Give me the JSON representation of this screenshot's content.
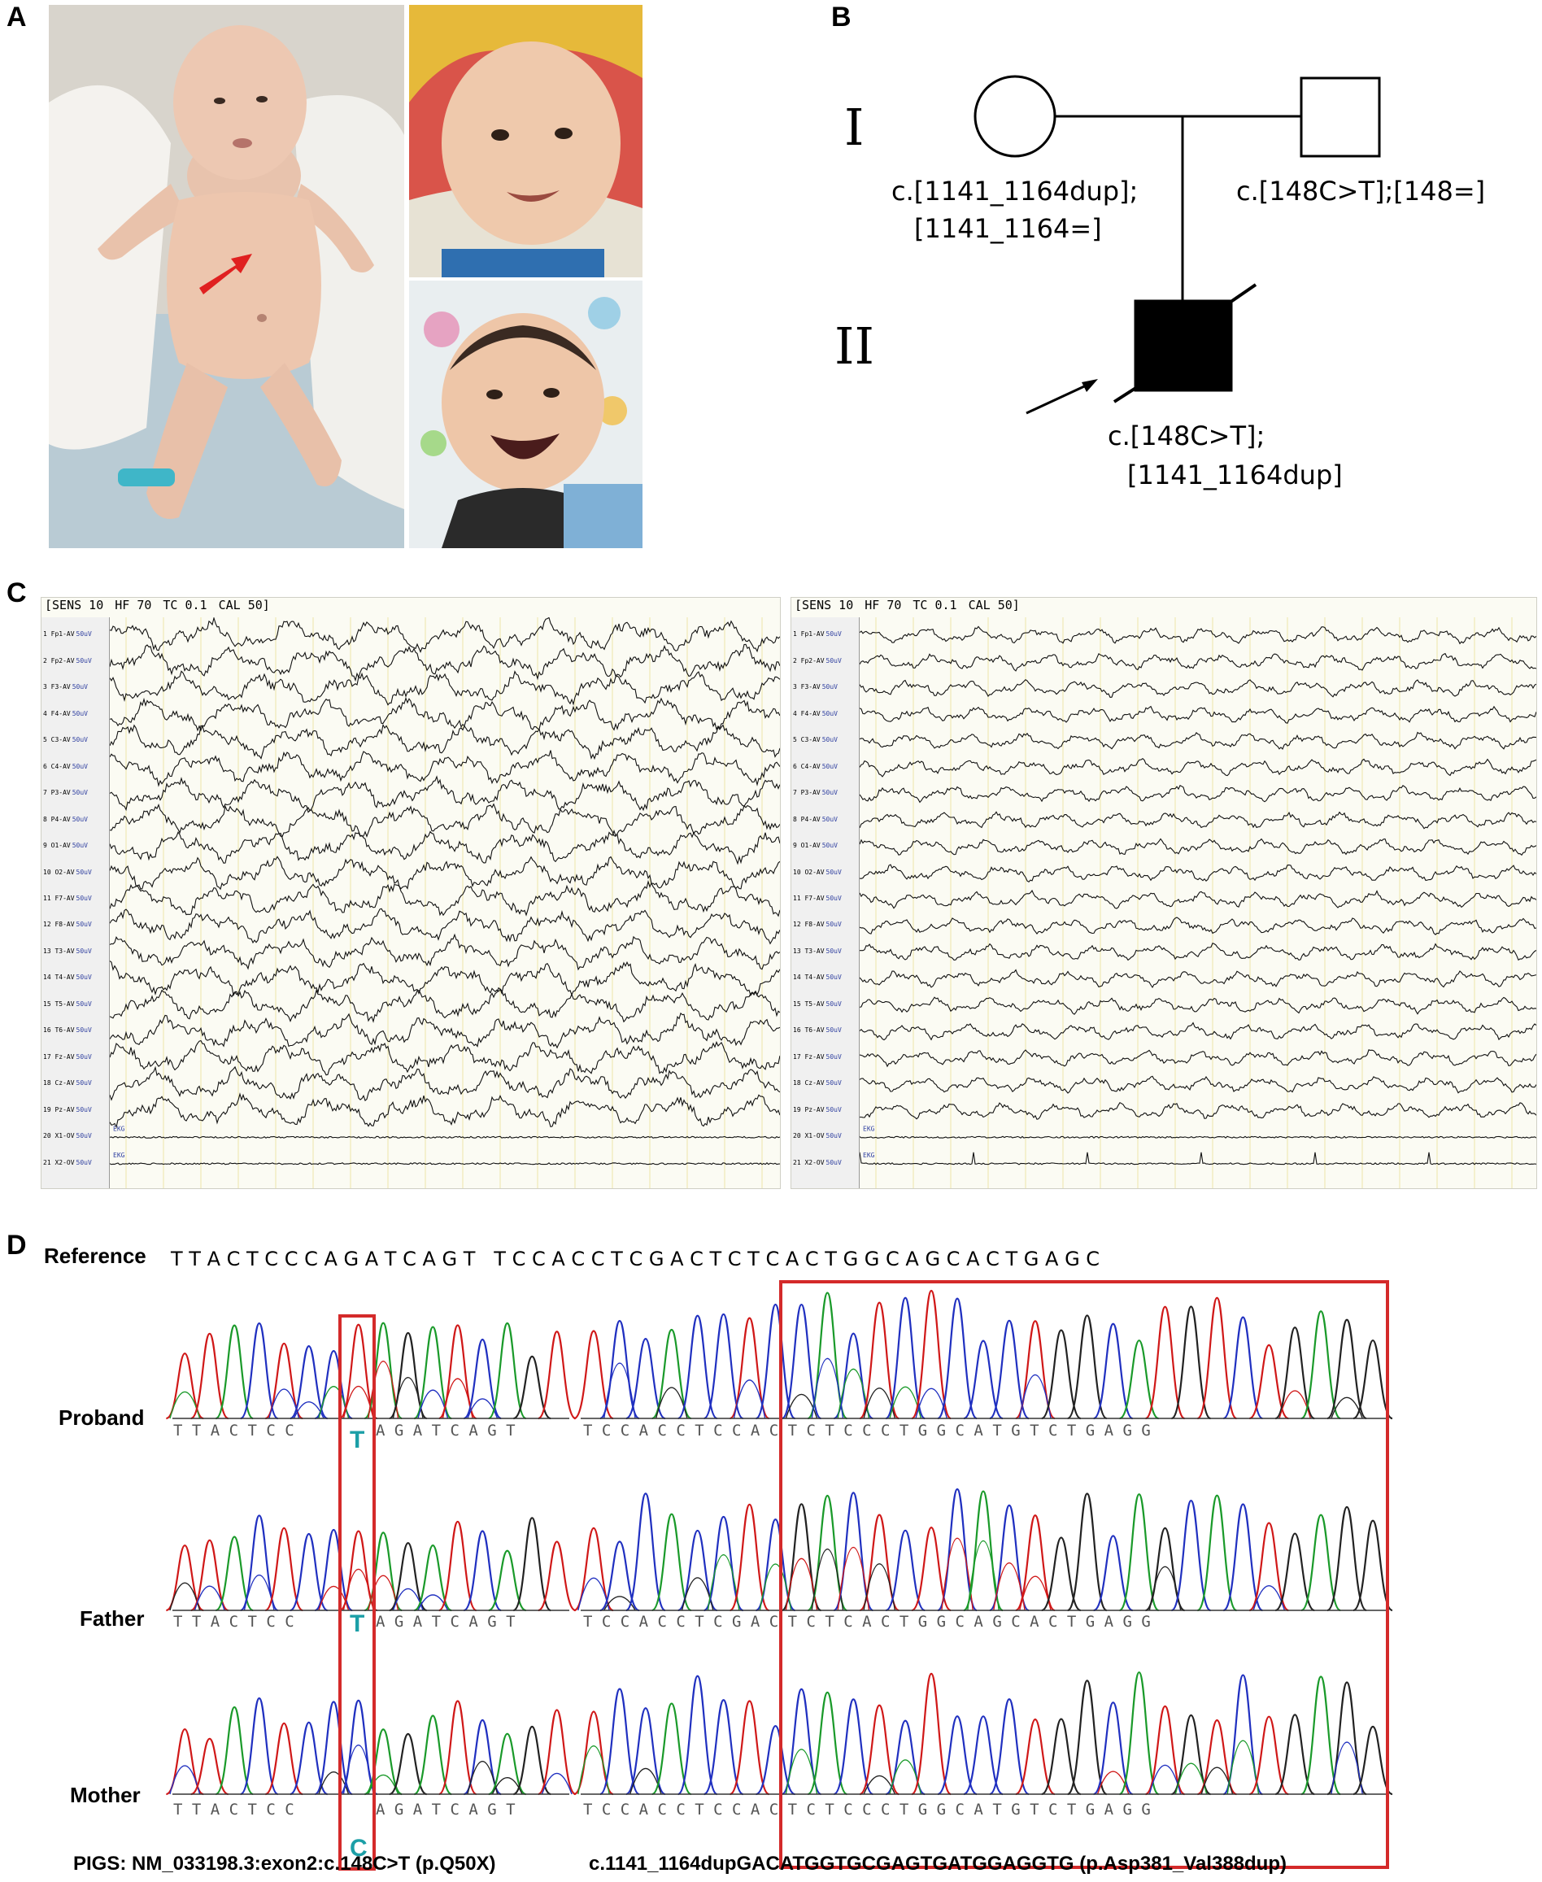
{
  "panels": {
    "a": "A",
    "b": "B",
    "c": "C",
    "d": "D"
  },
  "pedigree": {
    "generations": [
      "I",
      "II"
    ],
    "mother_genotype_line1": "c.[1141_1164dup];",
    "mother_genotype_line2": "[1141_1164=]",
    "father_genotype": "c.[148C>T];[148=]",
    "proband_genotype_line1": "c.[148C>T];",
    "proband_genotype_line2": "[1141_1164dup]"
  },
  "eeg": [
    {
      "header": [
        "[SENS 10",
        "HF 70",
        "TC 0.1",
        "CAL 50]"
      ],
      "channels": [
        "1 Fp1-AV",
        "2 Fp2-AV",
        "3 F3-AV",
        "4 F4-AV",
        "5 C3-AV",
        "6 C4-AV",
        "7 P3-AV",
        "8 P4-AV",
        "9 O1-AV",
        "10 O2-AV",
        "11 F7-AV",
        "12 F8-AV",
        "13 T3-AV",
        "14 T4-AV",
        "15 T5-AV",
        "16 T6-AV",
        "17 Fz-AV",
        "18 Cz-AV",
        "19 Pz-AV",
        "20 X1-OV",
        "21 X2-OV"
      ],
      "cal": "50uV",
      "ekg": "EKG"
    },
    {
      "header": [
        "[SENS 10",
        "HF 70",
        "TC 0.1",
        "CAL 50]"
      ],
      "channels": [
        "1 Fp1-AV",
        "2 Fp2-AV",
        "3 F3-AV",
        "4 F4-AV",
        "5 C3-AV",
        "6 C4-AV",
        "7 P3-AV",
        "8 P4-AV",
        "9 O1-AV",
        "10 O2-AV",
        "11 F7-AV",
        "12 F8-AV",
        "13 T3-AV",
        "14 T4-AV",
        "15 T5-AV",
        "16 T6-AV",
        "17 Fz-AV",
        "18 Cz-AV",
        "19 Pz-AV",
        "20 X1-OV",
        "21 X2-OV"
      ],
      "cal": "50uV",
      "ekg": "EKG"
    }
  ],
  "sequencing": {
    "reference_label": "Reference",
    "reference_seq": "T T A C T C C C A G A T C A G T   T C C A C C T C G A C T C T C A C T G G C A G C A C T G A G C",
    "rows": [
      {
        "label": "Proband",
        "left_bases": "T T A C T C C",
        "highlight": "T",
        "left_after": "A G A T C A G T",
        "right_bases": "T C C A C C T C C A C T C T C C C T G G C A T G T C T G A G G"
      },
      {
        "label": "Father",
        "left_bases": "T T A C T C C",
        "highlight": "T",
        "left_after": "A G A T C A G T",
        "right_bases": "T C C A C C T C G A C T C T C A C T G G C A G C A C T G A G G"
      },
      {
        "label": "Mother",
        "left_bases": "T T A C T C C",
        "highlight": "C",
        "left_after": "A G A T C A G T",
        "right_bases": "T C C A C C T C C A C T C T C C C T G G C A T G T C T G A G G"
      }
    ],
    "caption_left": "PIGS: NM_033198.3:exon2:c.148C>T (p.Q50X)",
    "caption_right": "c.1141_1164dupGACATGGTGCGAGTGATGGAGGTG (p.Asp381_Val388dup)"
  },
  "colors": {
    "red_box": "#d42a2a",
    "arrow": "#e02020",
    "highlight_base": "#1c9fa7",
    "peak_a": "#1a9a2a",
    "peak_c": "#2030c0",
    "peak_g": "#222222",
    "peak_t": "#d01818"
  }
}
